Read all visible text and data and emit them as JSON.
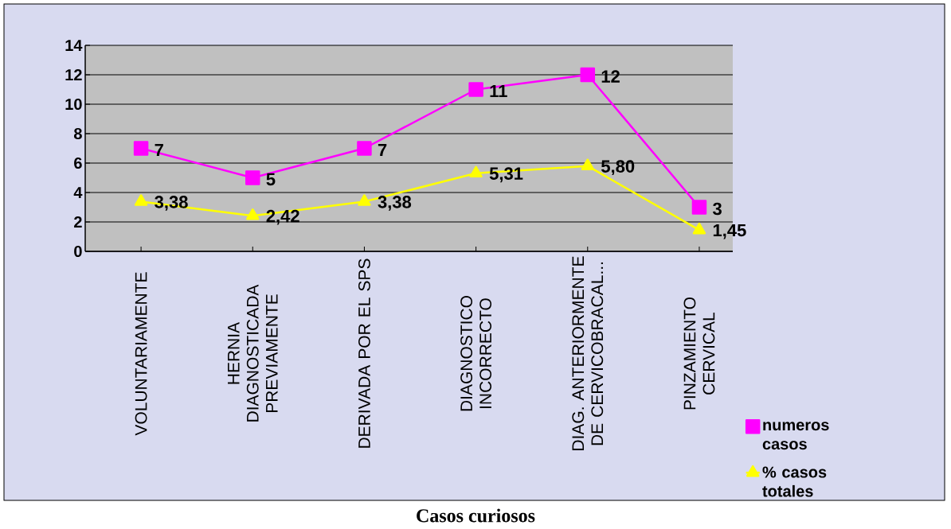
{
  "chart_data": {
    "type": "line",
    "title": "Casos curiosos",
    "categories": [
      "VOLUNTARIAMENTE",
      "HERNIA DIAGNOSTICADA PREVIAMENTE",
      "DERIVADA POR EL SPS",
      "DIAGNOSTICO INCORRECTO",
      "DIAG. ANTERIORMENTE DE CERVICOBRACAL...",
      "PINZAMIENTO CERVICAL"
    ],
    "series": [
      {
        "name": "numeros casos",
        "color": "#ff00ff",
        "marker": "square",
        "values": [
          7,
          5,
          7,
          11,
          12,
          3
        ],
        "value_labels": [
          "7",
          "5",
          "7",
          "11",
          "12",
          "3"
        ]
      },
      {
        "name": "% casos totales",
        "color": "#ffff00",
        "marker": "triangle",
        "values": [
          3.38,
          2.42,
          3.38,
          5.31,
          5.8,
          1.45
        ],
        "value_labels": [
          "3,38",
          "2,42",
          "3,38",
          "5,31",
          "5,80",
          "1,45"
        ]
      }
    ],
    "ylim": [
      0,
      14
    ],
    "yticks": [
      0,
      2,
      4,
      6,
      8,
      10,
      12,
      14
    ],
    "grid": "y",
    "legend": "right"
  }
}
